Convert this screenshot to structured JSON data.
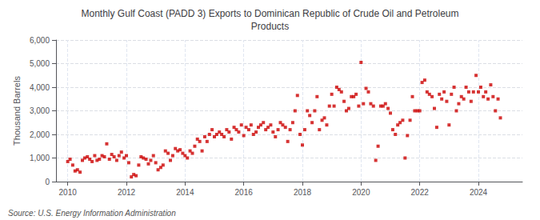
{
  "chart_data": {
    "type": "scatter",
    "title": "Monthly Gulf Coast (PADD 3) Exports to Dominican Republic of Crude Oil and Petroleum\nProducts",
    "ylabel": "Thousand Barrels",
    "annotations": [
      "Source: U.S. Energy Information Administration"
    ],
    "color": "#cc0000",
    "marker": "square",
    "grid": true,
    "xlim": [
      2009.6,
      2025.5
    ],
    "xticks": [
      2010,
      2012,
      2014,
      2016,
      2018,
      2020,
      2022,
      2024
    ],
    "ylim": [
      0,
      6000
    ],
    "yticks": [
      0,
      {
        "value": 1000,
        "label": "1,000"
      },
      {
        "value": 2000,
        "label": "2,000"
      },
      {
        "value": 3000,
        "label": "3,000"
      },
      {
        "value": 4000,
        "label": "4,000"
      },
      {
        "value": 5000,
        "label": "5,000"
      },
      {
        "value": 6000,
        "label": "6,000"
      }
    ],
    "x": [
      2010.0,
      2010.08,
      2010.17,
      2010.25,
      2010.33,
      2010.42,
      2010.5,
      2010.58,
      2010.67,
      2010.75,
      2010.83,
      2010.92,
      2011.0,
      2011.08,
      2011.17,
      2011.25,
      2011.33,
      2011.42,
      2011.5,
      2011.58,
      2011.67,
      2011.75,
      2011.83,
      2011.92,
      2012.0,
      2012.08,
      2012.17,
      2012.25,
      2012.33,
      2012.42,
      2012.5,
      2012.58,
      2012.67,
      2012.75,
      2012.83,
      2012.92,
      2013.0,
      2013.08,
      2013.17,
      2013.25,
      2013.33,
      2013.42,
      2013.5,
      2013.58,
      2013.67,
      2013.75,
      2013.83,
      2013.92,
      2014.0,
      2014.08,
      2014.17,
      2014.25,
      2014.33,
      2014.42,
      2014.5,
      2014.58,
      2014.67,
      2014.75,
      2014.83,
      2014.92,
      2015.0,
      2015.08,
      2015.17,
      2015.25,
      2015.33,
      2015.42,
      2015.5,
      2015.58,
      2015.67,
      2015.75,
      2015.83,
      2015.92,
      2016.0,
      2016.08,
      2016.17,
      2016.25,
      2016.33,
      2016.42,
      2016.5,
      2016.58,
      2016.67,
      2016.75,
      2016.83,
      2016.92,
      2017.0,
      2017.08,
      2017.17,
      2017.25,
      2017.33,
      2017.42,
      2017.5,
      2017.58,
      2017.67,
      2017.75,
      2017.83,
      2017.92,
      2018.0,
      2018.08,
      2018.17,
      2018.25,
      2018.33,
      2018.42,
      2018.5,
      2018.58,
      2018.67,
      2018.75,
      2018.83,
      2018.92,
      2019.0,
      2019.08,
      2019.17,
      2019.25,
      2019.33,
      2019.42,
      2019.5,
      2019.58,
      2019.67,
      2019.75,
      2019.83,
      2019.92,
      2020.0,
      2020.08,
      2020.17,
      2020.25,
      2020.33,
      2020.42,
      2020.5,
      2020.58,
      2020.67,
      2020.75,
      2020.83,
      2020.92,
      2021.0,
      2021.08,
      2021.17,
      2021.25,
      2021.33,
      2021.42,
      2021.5,
      2021.58,
      2021.67,
      2021.75,
      2021.83,
      2021.92,
      2022.0,
      2022.08,
      2022.17,
      2022.25,
      2022.33,
      2022.42,
      2022.5,
      2022.58,
      2022.67,
      2022.75,
      2022.83,
      2022.92,
      2023.0,
      2023.08,
      2023.17,
      2023.25,
      2023.33,
      2023.42,
      2023.5,
      2023.58,
      2023.67,
      2023.75,
      2023.83,
      2023.92,
      2024.0,
      2024.08,
      2024.17,
      2024.25,
      2024.33,
      2024.42,
      2024.5,
      2024.58,
      2024.67,
      2024.75
    ],
    "values": [
      850,
      950,
      700,
      450,
      500,
      400,
      900,
      1000,
      1050,
      950,
      850,
      1100,
      900,
      950,
      1100,
      1050,
      1600,
      950,
      1150,
      1050,
      900,
      1100,
      1250,
      1000,
      1100,
      800,
      200,
      300,
      250,
      700,
      1050,
      1000,
      950,
      750,
      900,
      1100,
      800,
      500,
      600,
      700,
      1300,
      1200,
      900,
      1100,
      1400,
      1300,
      1350,
      1200,
      1100,
      1000,
      1300,
      1200,
      1500,
      1800,
      1700,
      1300,
      1900,
      1700,
      2000,
      2200,
      1900,
      2000,
      2100,
      2000,
      1900,
      2200,
      2100,
      1800,
      2300,
      2200,
      2100,
      2400,
      1950,
      2300,
      2200,
      2400,
      2000,
      2100,
      2300,
      2400,
      2500,
      2200,
      2300,
      2400,
      2100,
      1900,
      2200,
      2500,
      2400,
      2300,
      1700,
      2200,
      2500,
      3000,
      3650,
      2000,
      1550,
      2200,
      3000,
      2800,
      2500,
      3000,
      3600,
      2200,
      2600,
      2700,
      2400,
      3200,
      3700,
      3200,
      4000,
      3900,
      3800,
      3400,
      3000,
      3100,
      3600,
      3600,
      3700,
      3200,
      5050,
      3300,
      3950,
      3800,
      3300,
      3200,
      900,
      1500,
      3200,
      3200,
      3300,
      3100,
      2900,
      2200,
      2000,
      2400,
      2500,
      2600,
      1000,
      1950,
      2600,
      3600,
      3000,
      3000,
      3000,
      4200,
      4300,
      3800,
      3700,
      3600,
      3100,
      2300,
      3700,
      3500,
      3800,
      3400,
      2400,
      3700,
      4000,
      3000,
      3300,
      3600,
      3500,
      4000,
      3800,
      3400,
      3800,
      4500,
      3800,
      4000,
      3600,
      3800,
      3500,
      4100,
      3600,
      3000,
      3500,
      2700
    ]
  }
}
